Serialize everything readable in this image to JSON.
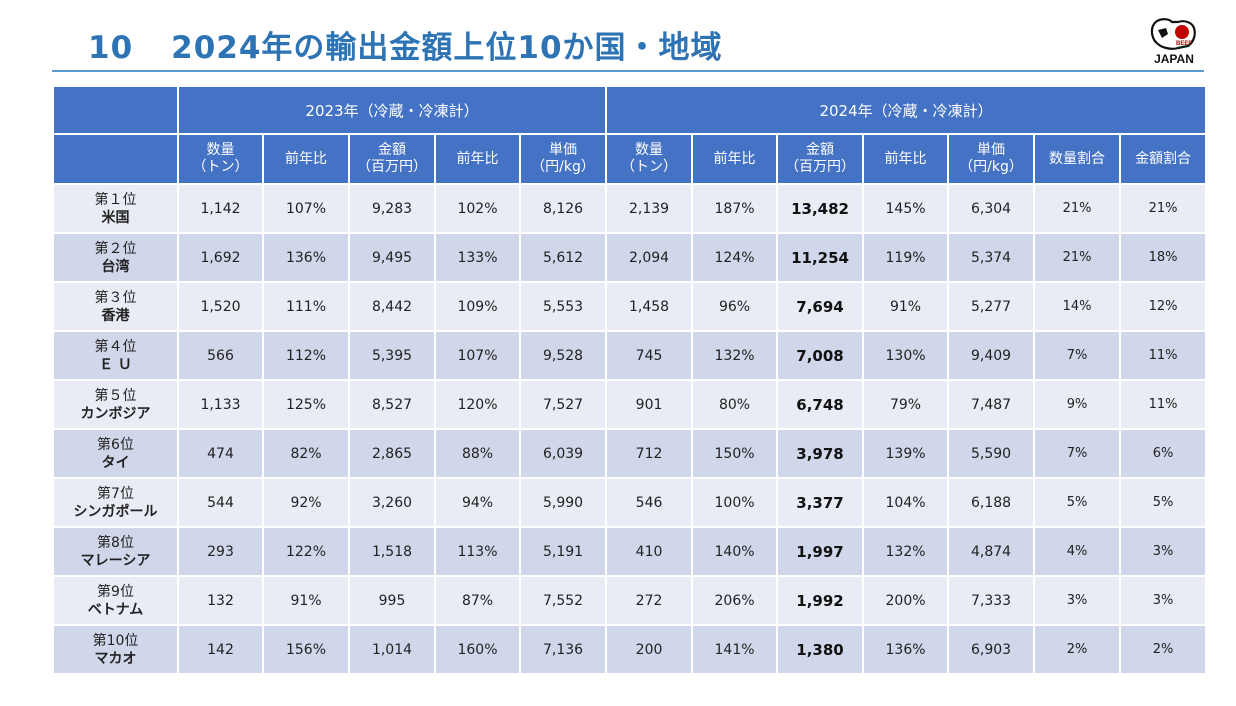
{
  "slide": {
    "number": "10",
    "title": "2024年の輸出金額上位10か国・地域"
  },
  "logo": {
    "text": "JAPAN",
    "small_text": "BEEF",
    "accent_color": "#c00000"
  },
  "colors": {
    "header": "#4472c4",
    "row_light": "#e9ecf4",
    "row_dark": "#d0d7ea",
    "title": "#2e74b5"
  },
  "table": {
    "group_headers": [
      "2023年（冷蔵・冷凍計）",
      "2024年（冷蔵・冷凍計）"
    ],
    "sub_headers": [
      [
        "数量",
        "（トン）"
      ],
      [
        "前年比"
      ],
      [
        "金額",
        "（百万円）"
      ],
      [
        "前年比"
      ],
      [
        "単価",
        "（円/kg）"
      ],
      [
        "数量",
        "（トン）"
      ],
      [
        "前年比"
      ],
      [
        "金額",
        "（百万円）"
      ],
      [
        "前年比"
      ],
      [
        "単価",
        "（円/kg）"
      ],
      [
        "数量割合"
      ],
      [
        "金額割合"
      ]
    ],
    "rows": [
      {
        "rank": "第１位",
        "country": "米国",
        "cells": [
          "1,142",
          "107%",
          "9,283",
          "102%",
          "8,126",
          "2,139",
          "187%",
          "13,482",
          "145%",
          "6,304",
          "21%",
          "21%"
        ]
      },
      {
        "rank": "第２位",
        "country": "台湾",
        "cells": [
          "1,692",
          "136%",
          "9,495",
          "133%",
          "5,612",
          "2,094",
          "124%",
          "11,254",
          "119%",
          "5,374",
          "21%",
          "18%"
        ]
      },
      {
        "rank": "第３位",
        "country": "香港",
        "cells": [
          "1,520",
          "111%",
          "8,442",
          "109%",
          "5,553",
          "1,458",
          "96%",
          "7,694",
          "91%",
          "5,277",
          "14%",
          "12%"
        ]
      },
      {
        "rank": "第４位",
        "country": "Ｅ Ｕ",
        "cells": [
          "566",
          "112%",
          "5,395",
          "107%",
          "9,528",
          "745",
          "132%",
          "7,008",
          "130%",
          "9,409",
          "7%",
          "11%"
        ]
      },
      {
        "rank": "第５位",
        "country": "カンボジア",
        "cells": [
          "1,133",
          "125%",
          "8,527",
          "120%",
          "7,527",
          "901",
          "80%",
          "6,748",
          "79%",
          "7,487",
          "9%",
          "11%"
        ]
      },
      {
        "rank": "第6位",
        "country": "タイ",
        "cells": [
          "474",
          "82%",
          "2,865",
          "88%",
          "6,039",
          "712",
          "150%",
          "3,978",
          "139%",
          "5,590",
          "7%",
          "6%"
        ]
      },
      {
        "rank": "第7位",
        "country": "シンガポール",
        "cells": [
          "544",
          "92%",
          "3,260",
          "94%",
          "5,990",
          "546",
          "100%",
          "3,377",
          "104%",
          "6,188",
          "5%",
          "5%"
        ]
      },
      {
        "rank": "第8位",
        "country": "マレーシア",
        "cells": [
          "293",
          "122%",
          "1,518",
          "113%",
          "5,191",
          "410",
          "140%",
          "1,997",
          "132%",
          "4,874",
          "4%",
          "3%"
        ]
      },
      {
        "rank": "第9位",
        "country": "ベトナム",
        "cells": [
          "132",
          "91%",
          "995",
          "87%",
          "7,552",
          "272",
          "206%",
          "1,992",
          "200%",
          "7,333",
          "3%",
          "3%"
        ]
      },
      {
        "rank": "第10位",
        "country": "マカオ",
        "cells": [
          "142",
          "156%",
          "1,014",
          "160%",
          "7,136",
          "200",
          "141%",
          "1,380",
          "136%",
          "6,903",
          "2%",
          "2%"
        ]
      }
    ]
  }
}
